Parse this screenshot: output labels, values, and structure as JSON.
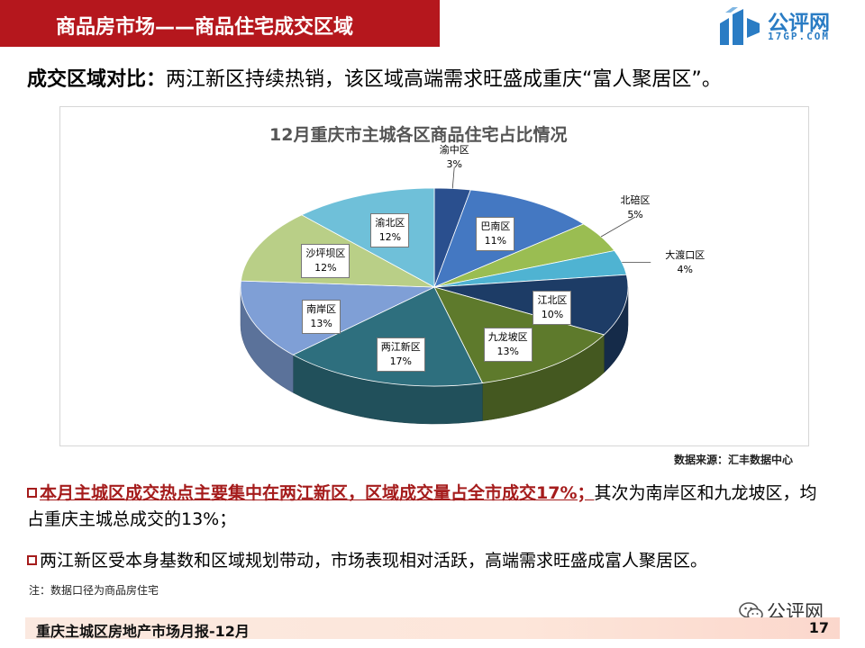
{
  "header": {
    "title": "商品房市场——商品住宅成交区域"
  },
  "logo": {
    "name": "公评网",
    "domain": "17GP.COM"
  },
  "headline": {
    "label": "成交区域对比：",
    "text": "两江新区持续热销，该区域高端需求旺盛成重庆“富人聚居区”。"
  },
  "chart_data": {
    "type": "pie",
    "title": "12月重庆市主城各区商品住宅占比情况",
    "unit": "%",
    "slices": [
      {
        "name": "渝中区",
        "value": 3,
        "label": "3%",
        "color": "#2a4f8e"
      },
      {
        "name": "巴南区",
        "value": 11,
        "label": "11%",
        "color": "#4478c2"
      },
      {
        "name": "北碚区",
        "value": 5,
        "label": "5%",
        "color": "#9abd52"
      },
      {
        "name": "大渡口区",
        "value": 4,
        "label": "4%",
        "color": "#4fb3d2"
      },
      {
        "name": "江北区",
        "value": 10,
        "label": "10%",
        "color": "#1d3c66"
      },
      {
        "name": "九龙坡区",
        "value": 13,
        "label": "13%",
        "color": "#5e7a2c"
      },
      {
        "name": "两江新区",
        "value": 17,
        "label": "17%",
        "color": "#2e6f7e"
      },
      {
        "name": "南岸区",
        "value": 13,
        "label": "13%",
        "color": "#7f9fd6"
      },
      {
        "name": "沙坪坝区",
        "value": 12,
        "label": "12%",
        "color": "#b9cf87"
      },
      {
        "name": "渝北区",
        "value": 12,
        "label": "12%",
        "color": "#6fc0d9"
      }
    ]
  },
  "source": "数据来源：汇丰数据中心",
  "bullets": {
    "b1_highlight": "本月主城区成交热点主要集中在两江新区，区域成交量占全市成交17%；",
    "b1_rest": "其次为南岸区和九龙坡区，均占重庆主城总成交的13%；",
    "b2": "两江新区受本身基数和区域规划带动，市场表现相对活跃，高端需求旺盛成富人聚居区。"
  },
  "note": "注：数据口径为商品房住宅",
  "wechat": {
    "name": "公评网"
  },
  "footer": {
    "text": "重庆主城区房地产市场月报-12月",
    "page": "17"
  }
}
